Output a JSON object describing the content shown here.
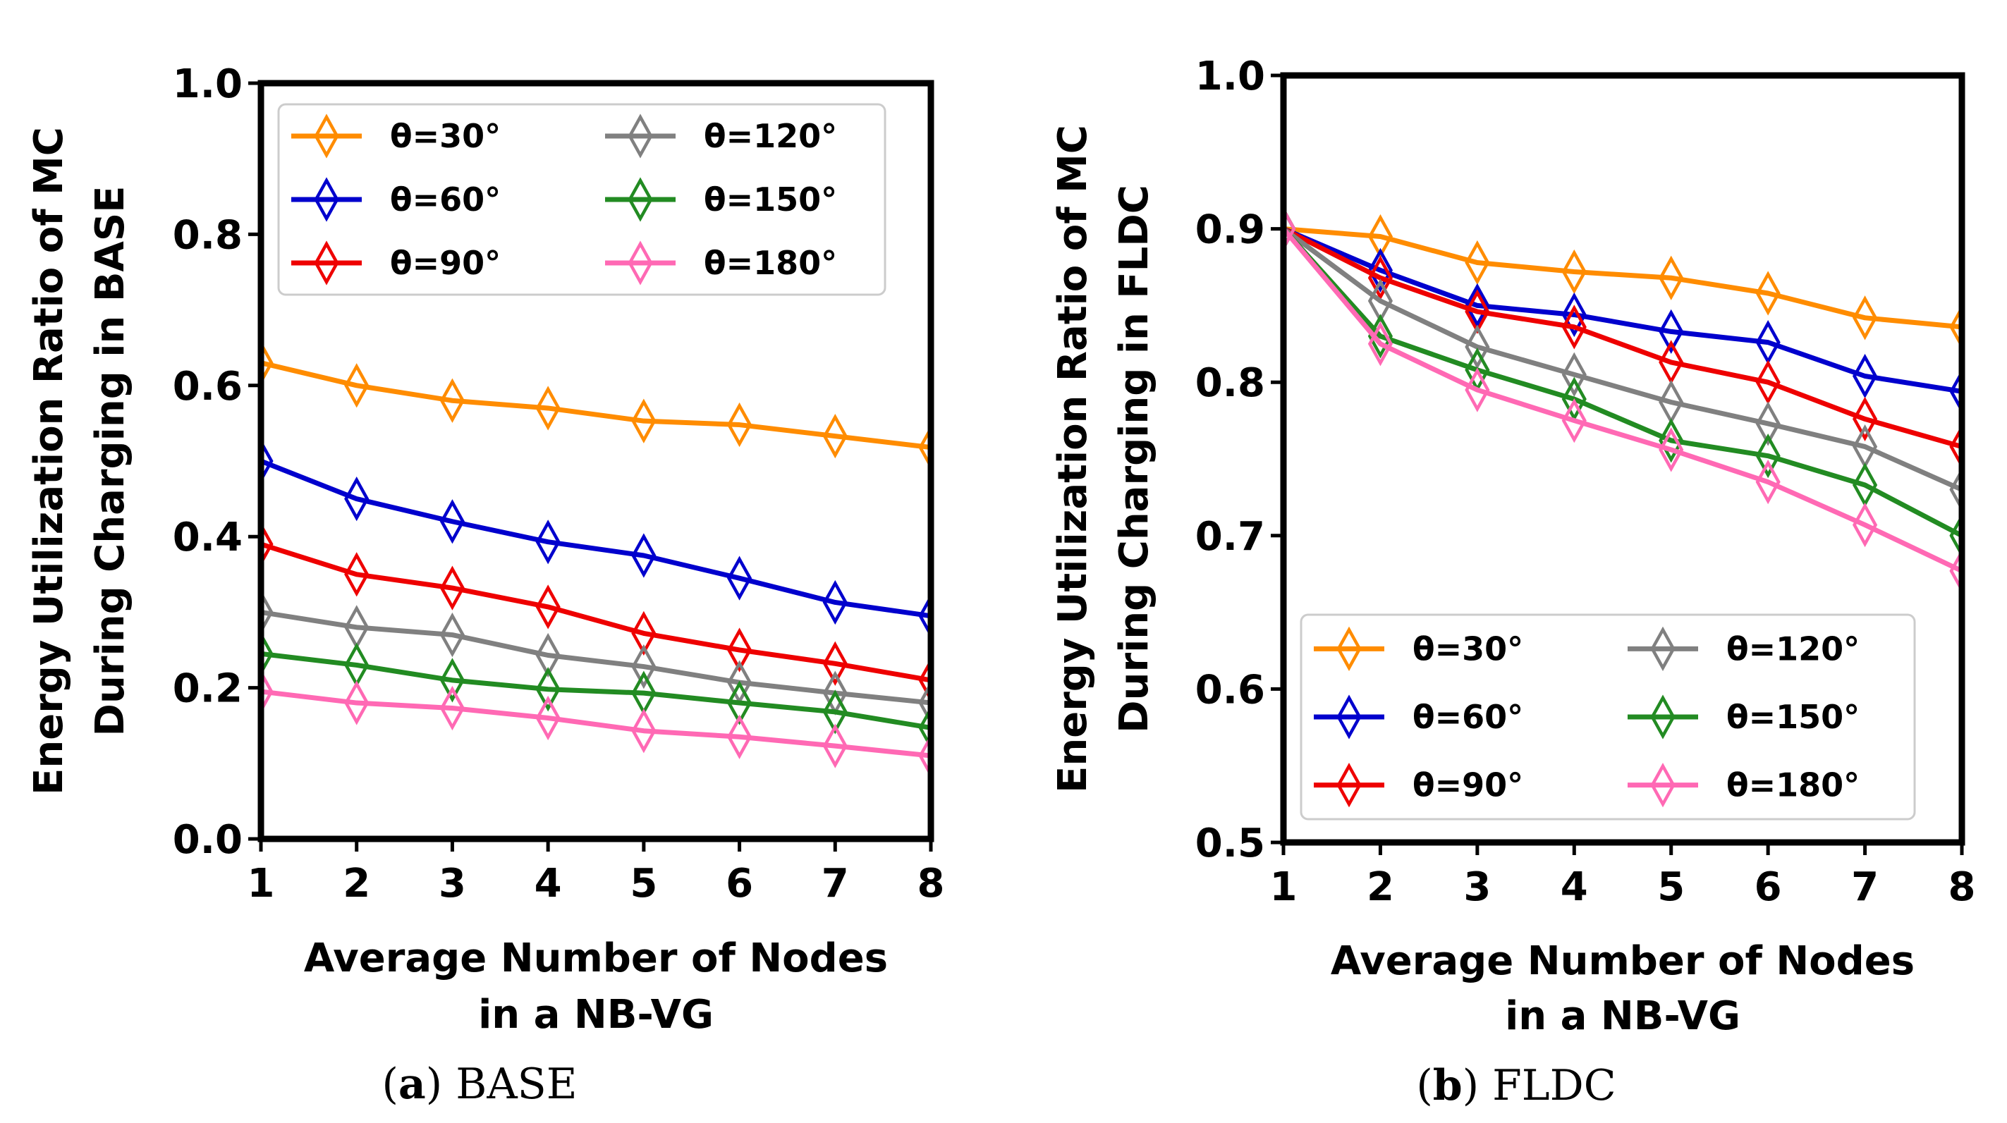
{
  "chart_data": [
    {
      "id": "base",
      "type": "line",
      "caption_label": "a",
      "caption_text": "BASE",
      "xlabel_line1": "Average Number of Nodes",
      "xlabel_line2": "in a NB-VG",
      "ylabel_line1": "Energy Utilization Ratio of MC",
      "ylabel_line2": "During Charging in BASE",
      "xlim": [
        1,
        8
      ],
      "ylim": [
        0.0,
        1.0
      ],
      "xticks": [
        1,
        2,
        3,
        4,
        5,
        6,
        7,
        8
      ],
      "xtick_labels": [
        "1",
        "2",
        "3",
        "4",
        "5",
        "6",
        "7",
        "8"
      ],
      "yticks": [
        0.0,
        0.2,
        0.4,
        0.6,
        0.8,
        1.0
      ],
      "ytick_labels": [
        "0.0",
        "0.2",
        "0.4",
        "0.6",
        "0.8",
        "1.0"
      ],
      "legend_position": "top",
      "x": [
        1,
        2,
        3,
        4,
        5,
        6,
        7,
        8
      ],
      "series": [
        {
          "name": "θ=30°",
          "color": "#ff8c00",
          "values": [
            0.63,
            0.6,
            0.58,
            0.57,
            0.553,
            0.548,
            0.533,
            0.518
          ]
        },
        {
          "name": "θ=60°",
          "color": "#0000cd",
          "values": [
            0.5,
            0.45,
            0.42,
            0.393,
            0.375,
            0.345,
            0.313,
            0.295
          ]
        },
        {
          "name": "θ=90°",
          "color": "#ee0000",
          "values": [
            0.39,
            0.35,
            0.332,
            0.307,
            0.272,
            0.25,
            0.232,
            0.21
          ]
        },
        {
          "name": "θ=120°",
          "color": "#808080",
          "values": [
            0.3,
            0.28,
            0.27,
            0.243,
            0.228,
            0.207,
            0.193,
            0.18
          ]
        },
        {
          "name": "θ=150°",
          "color": "#228b22",
          "values": [
            0.245,
            0.23,
            0.21,
            0.198,
            0.193,
            0.18,
            0.168,
            0.147
          ]
        },
        {
          "name": "θ=180°",
          "color": "#ff69b4",
          "values": [
            0.195,
            0.18,
            0.173,
            0.16,
            0.143,
            0.135,
            0.123,
            0.11
          ]
        }
      ]
    },
    {
      "id": "fldc",
      "type": "line",
      "caption_label": "b",
      "caption_text": "FLDC",
      "xlabel_line1": "Average Number of Nodes",
      "xlabel_line2": "in a NB-VG",
      "ylabel_line1": "Energy Utilization Ratio of MC",
      "ylabel_line2": "During Charging in FLDC",
      "xlim": [
        1,
        8
      ],
      "ylim": [
        0.5,
        1.0
      ],
      "xticks": [
        1,
        2,
        3,
        4,
        5,
        6,
        7,
        8
      ],
      "xtick_labels": [
        "1",
        "2",
        "3",
        "4",
        "5",
        "6",
        "7",
        "8"
      ],
      "yticks": [
        0.5,
        0.6,
        0.7,
        0.8,
        0.9,
        1.0
      ],
      "ytick_labels": [
        "0.5",
        "0.6",
        "0.7",
        "0.8",
        "0.9",
        "1.0"
      ],
      "legend_position": "bottom",
      "x": [
        1,
        2,
        3,
        4,
        5,
        6,
        7,
        8
      ],
      "series": [
        {
          "name": "θ=30°",
          "color": "#ff8c00",
          "values": [
            0.9,
            0.895,
            0.878,
            0.872,
            0.868,
            0.858,
            0.842,
            0.836
          ]
        },
        {
          "name": "θ=60°",
          "color": "#0000cd",
          "values": [
            0.9,
            0.873,
            0.85,
            0.844,
            0.833,
            0.826,
            0.804,
            0.794
          ]
        },
        {
          "name": "θ=90°",
          "color": "#ee0000",
          "values": [
            0.9,
            0.868,
            0.846,
            0.836,
            0.813,
            0.8,
            0.776,
            0.758
          ]
        },
        {
          "name": "θ=120°",
          "color": "#808080",
          "values": [
            0.9,
            0.853,
            0.823,
            0.805,
            0.787,
            0.773,
            0.758,
            0.73
          ]
        },
        {
          "name": "θ=150°",
          "color": "#228b22",
          "values": [
            0.9,
            0.83,
            0.808,
            0.789,
            0.762,
            0.752,
            0.733,
            0.7
          ]
        },
        {
          "name": "θ=180°",
          "color": "#ff69b4",
          "values": [
            0.9,
            0.825,
            0.795,
            0.775,
            0.756,
            0.735,
            0.707,
            0.677
          ]
        }
      ]
    }
  ]
}
